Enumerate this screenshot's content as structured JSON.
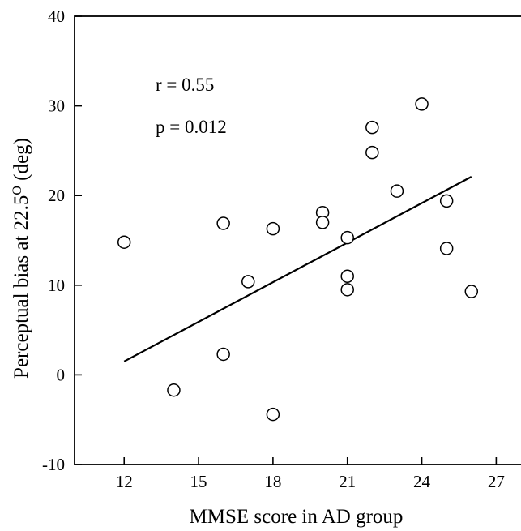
{
  "chart_data": {
    "type": "scatter",
    "title": "",
    "xlabel": "MMSE score in AD group",
    "ylabel_parts": {
      "main": "Perceptual bias at 22.5",
      "sup": "O",
      "tail": " (deg)"
    },
    "xlim": [
      10,
      28
    ],
    "ylim": [
      -10,
      40
    ],
    "xticks": [
      12,
      15,
      18,
      21,
      24,
      27
    ],
    "yticks": [
      -10,
      0,
      10,
      20,
      30,
      40
    ],
    "grid": false,
    "annotations": [
      "r = 0.55",
      "p = 0.012"
    ],
    "points": [
      {
        "x": 12,
        "y": 14.8
      },
      {
        "x": 14,
        "y": -1.7
      },
      {
        "x": 16,
        "y": 16.9
      },
      {
        "x": 16,
        "y": 2.3
      },
      {
        "x": 17,
        "y": 10.4
      },
      {
        "x": 18,
        "y": 16.3
      },
      {
        "x": 18,
        "y": -4.4
      },
      {
        "x": 20,
        "y": 18.1
      },
      {
        "x": 20,
        "y": 17.0
      },
      {
        "x": 21,
        "y": 15.3
      },
      {
        "x": 21,
        "y": 11.0
      },
      {
        "x": 21,
        "y": 9.5
      },
      {
        "x": 22,
        "y": 27.6
      },
      {
        "x": 22,
        "y": 24.8
      },
      {
        "x": 23,
        "y": 20.5
      },
      {
        "x": 24,
        "y": 30.2
      },
      {
        "x": 25,
        "y": 19.4
      },
      {
        "x": 25,
        "y": 14.1
      },
      {
        "x": 26,
        "y": 9.3
      }
    ],
    "fit_line": {
      "x": [
        12,
        26
      ],
      "y": [
        1.5,
        22.1
      ]
    }
  }
}
